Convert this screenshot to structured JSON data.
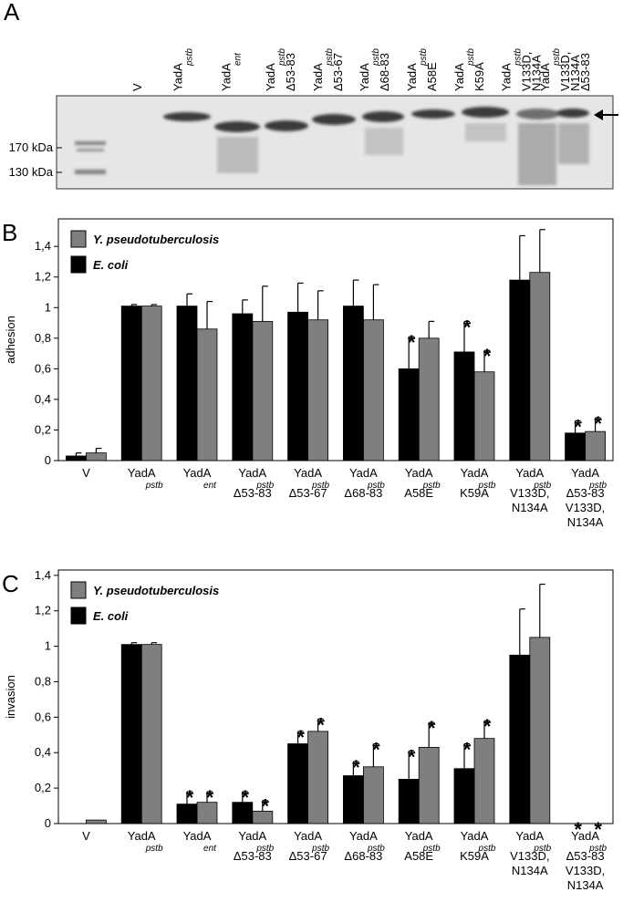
{
  "panel_a": {
    "label": "A",
    "lanes": [
      [
        "V"
      ],
      [
        "YadA",
        "pstb"
      ],
      [
        "YadA",
        "ent"
      ],
      [
        "YadA",
        "pstb",
        "Δ53-83"
      ],
      [
        "YadA",
        "pstb",
        "Δ53-67"
      ],
      [
        "YadA",
        "pstb",
        "Δ68-83"
      ],
      [
        "YadA",
        "pstb",
        "A58E"
      ],
      [
        "YadA",
        "pstb",
        "K59A"
      ],
      [
        "YadA",
        "pstb",
        "V133D,",
        "N134A"
      ],
      [
        "YadA",
        "pstb",
        "V133D,",
        "N134A",
        "Δ53-83"
      ]
    ],
    "markers": [
      "170 kDa",
      "130 kDa"
    ]
  },
  "chart_data": [
    {
      "type": "bar",
      "panel_label": "B",
      "y_label": "adhesion",
      "categories": [
        [
          "V"
        ],
        [
          "YadA",
          "pstb"
        ],
        [
          "YadA",
          "ent"
        ],
        [
          "YadA",
          "pstb",
          "Δ53-83"
        ],
        [
          "YadA",
          "pstb",
          "Δ53-67"
        ],
        [
          "YadA",
          "pstb",
          "Δ68-83"
        ],
        [
          "YadA",
          "pstb",
          "A58E"
        ],
        [
          "YadA",
          "pstb",
          "K59A"
        ],
        [
          "YadA",
          "pstb",
          "V133D,",
          "N134A"
        ],
        [
          "YadA",
          "pstb",
          "Δ53-83",
          "V133D,",
          "N134A"
        ]
      ],
      "ylim": [
        0,
        1.58
      ],
      "yticks": [
        0,
        {
          "value": 0.2,
          "label": "0,2"
        },
        {
          "value": 0.4,
          "label": "0,4"
        },
        {
          "value": 0.6,
          "label": "0,6"
        },
        {
          "value": 0.8,
          "label": "0,8"
        },
        1,
        {
          "value": 1.2,
          "label": "1,2"
        },
        {
          "value": 1.4,
          "label": "1,4"
        }
      ],
      "star_label": "*",
      "series": [
        {
          "name": "Y. pseudotuberculosis",
          "color": "#7f7f7f",
          "values": [
            0.05,
            1.01,
            0.86,
            0.91,
            0.92,
            0.92,
            0.8,
            0.58,
            1.23,
            0.19
          ],
          "errors": [
            0.03,
            0.01,
            0.18,
            0.23,
            0.19,
            0.23,
            0.11,
            0.14,
            0.28,
            0.09
          ],
          "stars": [
            false,
            false,
            false,
            false,
            false,
            false,
            false,
            true,
            false,
            true
          ]
        },
        {
          "name": "E. coli",
          "color": "#000000",
          "values": [
            0.03,
            1.01,
            1.01,
            0.96,
            0.97,
            1.01,
            0.6,
            0.71,
            1.18,
            0.18
          ],
          "errors": [
            0.02,
            0.01,
            0.08,
            0.09,
            0.19,
            0.17,
            0.21,
            0.2,
            0.29,
            0.08
          ],
          "stars": [
            false,
            false,
            false,
            false,
            false,
            false,
            true,
            true,
            false,
            true
          ]
        }
      ]
    },
    {
      "type": "bar",
      "panel_label": "C",
      "y_label": "invasion",
      "categories": [
        [
          "V"
        ],
        [
          "YadA",
          "pstb"
        ],
        [
          "YadA",
          "ent"
        ],
        [
          "YadA",
          "pstb",
          "Δ53-83"
        ],
        [
          "YadA",
          "pstb",
          "Δ53-67"
        ],
        [
          "YadA",
          "pstb",
          "Δ68-83"
        ],
        [
          "YadA",
          "pstb",
          "A58E"
        ],
        [
          "YadA",
          "pstb",
          "K59A"
        ],
        [
          "YadA",
          "pstb",
          "V133D,",
          "N134A"
        ],
        [
          "YadA",
          "pstb",
          "Δ53-83",
          "V133D,",
          "N134A"
        ]
      ],
      "ylim": [
        0,
        1.43
      ],
      "yticks": [
        0,
        {
          "value": 0.2,
          "label": "0,2"
        },
        {
          "value": 0.4,
          "label": "0,4"
        },
        {
          "value": 0.6,
          "label": "0,6"
        },
        {
          "value": 0.8,
          "label": "0,8"
        },
        1,
        {
          "value": 1.2,
          "label": "1,2"
        },
        {
          "value": 1.4,
          "label": "1,4"
        }
      ],
      "star_label": "*",
      "series": [
        {
          "name": "Y. pseudotuberculosis",
          "color": "#7f7f7f",
          "values": [
            0.02,
            1.01,
            0.12,
            0.07,
            0.52,
            0.32,
            0.43,
            0.48,
            1.05,
            0
          ],
          "errors": [
            null,
            0.01,
            0.06,
            0.06,
            0.07,
            0.13,
            0.14,
            0.1,
            0.3,
            null
          ],
          "stars": [
            false,
            false,
            true,
            true,
            true,
            true,
            true,
            true,
            false,
            true
          ]
        },
        {
          "name": "E. coli",
          "color": "#000000",
          "values": [
            0,
            1.01,
            0.11,
            0.12,
            0.45,
            0.27,
            0.25,
            0.31,
            0.95,
            0
          ],
          "errors": [
            null,
            0.01,
            0.07,
            0.06,
            0.07,
            0.08,
            0.16,
            0.14,
            0.26,
            null
          ],
          "stars": [
            false,
            false,
            true,
            true,
            true,
            true,
            true,
            true,
            false,
            true
          ]
        }
      ]
    }
  ]
}
